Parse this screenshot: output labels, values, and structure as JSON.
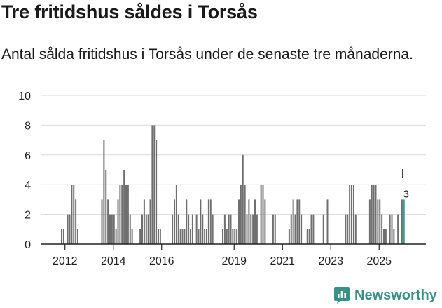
{
  "title": "Tre fritidshus såldes i Torsås",
  "subtitle": "Antal sålda fritidshus i Torsås under de senaste tre månaderna.",
  "brand": "Newsworthy",
  "colors": {
    "bar": "#6f6f6f",
    "highlight": "#2f9c95",
    "grid": "#d9d9d9",
    "brand": "#3a8f86"
  },
  "chart_data": {
    "type": "bar",
    "title": "Tre fritidshus såldes i Torsås",
    "ylabel": "Antal sålda fritidshus",
    "ylim": [
      0,
      10
    ],
    "yticks": [
      0,
      2,
      4,
      6,
      8,
      10
    ],
    "xticks": [
      {
        "label": "2012",
        "t": 2012.0
      },
      {
        "label": "2014",
        "t": 2014.0
      },
      {
        "label": "2016",
        "t": 2016.0
      },
      {
        "label": "2019",
        "t": 2019.0
      },
      {
        "label": "2021",
        "t": 2021.0
      },
      {
        "label": "2023",
        "t": 2023.0
      },
      {
        "label": "2025",
        "t": 2025.0
      }
    ],
    "start_period": "2011-11",
    "period_step_months": 1,
    "values": [
      1,
      1,
      0,
      2,
      2,
      4,
      4,
      3,
      1,
      0,
      0,
      0,
      0,
      0,
      0,
      0,
      0,
      0,
      0,
      0,
      3,
      7,
      5,
      3,
      2,
      2,
      2,
      1,
      3,
      4,
      4,
      5,
      4,
      4,
      2,
      1,
      0,
      0,
      0,
      1,
      2,
      3,
      2,
      2,
      3,
      8,
      8,
      7,
      1,
      1,
      0,
      0,
      0,
      0,
      0,
      2,
      3,
      4,
      2,
      1,
      1,
      1,
      3,
      2,
      1,
      2,
      0,
      2,
      1,
      3,
      2,
      1,
      1,
      3,
      3,
      2,
      0,
      0,
      0,
      0,
      1,
      2,
      1,
      2,
      2,
      1,
      1,
      1,
      3,
      4,
      6,
      4,
      2,
      3,
      2,
      2,
      3,
      2,
      0,
      4,
      4,
      3,
      0,
      0,
      0,
      2,
      2,
      0,
      0,
      0,
      0,
      0,
      0,
      1,
      2,
      3,
      2,
      3,
      3,
      2,
      0,
      0,
      1,
      1,
      2,
      2,
      0,
      0,
      0,
      0,
      2,
      0,
      3,
      0,
      0,
      0,
      0,
      0,
      0,
      0,
      0,
      2,
      2,
      4,
      4,
      4,
      2,
      0,
      0,
      0,
      0,
      0,
      0,
      3,
      4,
      4,
      4,
      3,
      3,
      2,
      1,
      1,
      0,
      2,
      2,
      1,
      0,
      2,
      0,
      3,
      3
    ],
    "latest_value": 3,
    "latest_label": "3"
  }
}
